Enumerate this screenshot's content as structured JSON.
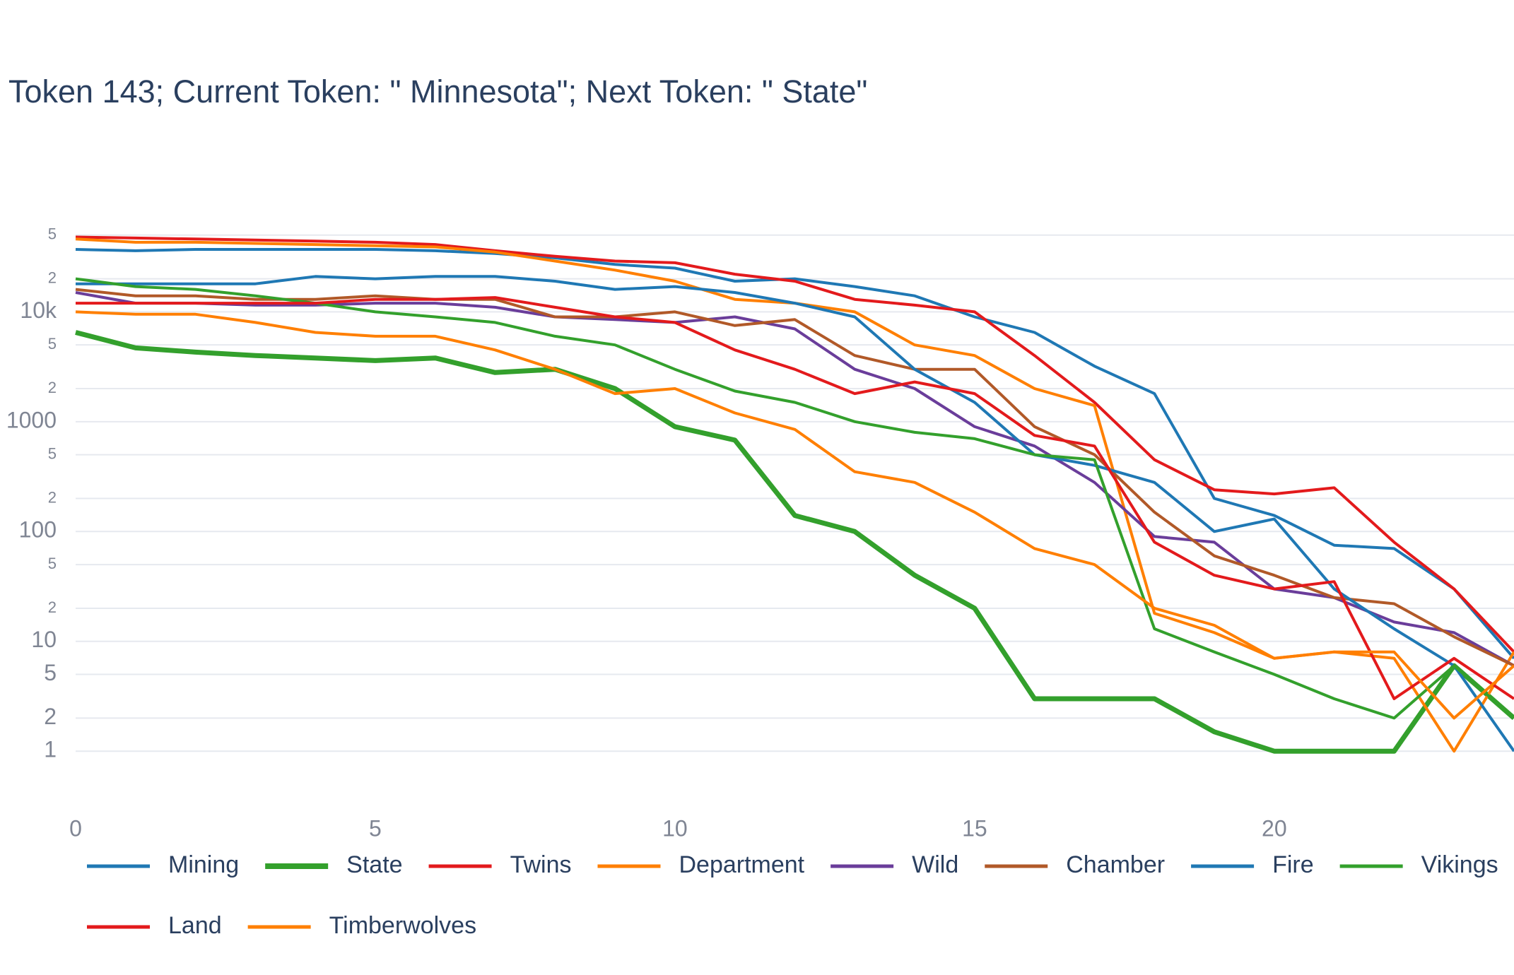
{
  "chart_data": {
    "type": "line",
    "title": "Token 143; Current Token: \" Minnesota\"; Next Token: \" State\"",
    "log_y": true,
    "grid": true,
    "legend": "bottom",
    "x": [
      0,
      1,
      2,
      3,
      4,
      5,
      6,
      7,
      8,
      9,
      10,
      11,
      12,
      13,
      14,
      15,
      16,
      17,
      18,
      19,
      20,
      21,
      22,
      23,
      24
    ],
    "xlim": [
      0,
      24
    ],
    "xticks": [
      0,
      5,
      10,
      15,
      20
    ],
    "ylim": [
      0.5,
      70000
    ],
    "yticks": [
      1,
      2,
      5,
      10,
      {
        "value": 20,
        "label": "2"
      },
      {
        "value": 50,
        "label": "5"
      },
      100,
      {
        "value": 200,
        "label": "2"
      },
      {
        "value": 500,
        "label": "5"
      },
      1000,
      {
        "value": 2000,
        "label": "2"
      },
      {
        "value": 5000,
        "label": "5"
      },
      {
        "value": 10000,
        "label": "10k"
      },
      {
        "value": 20000,
        "label": "2"
      },
      {
        "value": 50000,
        "label": "5"
      }
    ],
    "series": [
      {
        "name": "Mining",
        "color": "#1f78b4",
        "values": [
          37000,
          36000,
          37000,
          37000,
          37000,
          37000,
          36000,
          34000,
          31000,
          27000,
          25000,
          19000,
          20000,
          17000,
          14000,
          9000,
          6500,
          3200,
          1800,
          200,
          140,
          75,
          70,
          30,
          7
        ]
      },
      {
        "name": "State",
        "color": "#33a02c",
        "width": 7,
        "values": [
          6500,
          4700,
          4300,
          4000,
          3800,
          3600,
          3800,
          2800,
          3000,
          2000,
          900,
          680,
          140,
          100,
          40,
          20,
          3,
          3,
          3,
          1.5,
          1,
          1,
          1,
          6,
          2
        ]
      },
      {
        "name": "Twins",
        "color": "#e31a1c",
        "values": [
          48000,
          47000,
          46000,
          45000,
          44000,
          43000,
          41000,
          36000,
          32000,
          29000,
          28000,
          22000,
          19000,
          13000,
          11500,
          10000,
          4000,
          1500,
          450,
          240,
          220,
          250,
          80,
          30,
          8
        ]
      },
      {
        "name": "Department",
        "color": "#ff7f00",
        "values": [
          46000,
          43000,
          43000,
          42000,
          41000,
          40000,
          39000,
          35000,
          29000,
          24000,
          19000,
          13000,
          12000,
          10000,
          5000,
          4000,
          2000,
          1400,
          18,
          12,
          7,
          8,
          7,
          1,
          8
        ]
      },
      {
        "name": "Wild",
        "color": "#6a3d9a",
        "values": [
          15000,
          12000,
          12000,
          11500,
          11500,
          12000,
          12000,
          11000,
          9000,
          8500,
          8000,
          9000,
          7000,
          3000,
          2000,
          900,
          600,
          280,
          90,
          80,
          30,
          25,
          15,
          12,
          6
        ]
      },
      {
        "name": "Chamber",
        "color": "#b15928",
        "values": [
          16000,
          14000,
          14000,
          13000,
          13000,
          14000,
          13000,
          13000,
          9000,
          9000,
          10000,
          7500,
          8500,
          4000,
          3000,
          3000,
          900,
          500,
          150,
          60,
          40,
          25,
          22,
          11,
          6
        ]
      },
      {
        "name": "Fire",
        "color": "#1f78b4",
        "values": [
          18000,
          18000,
          18000,
          18000,
          21000,
          20000,
          21000,
          21000,
          19000,
          16000,
          17000,
          15000,
          12000,
          9000,
          3000,
          1500,
          500,
          400,
          280,
          100,
          130,
          30,
          13,
          6,
          1
        ]
      },
      {
        "name": "Vikings",
        "color": "#33a02c",
        "values": [
          20000,
          17000,
          16000,
          14000,
          12000,
          10000,
          9000,
          8000,
          6000,
          5000,
          3000,
          1900,
          1500,
          1000,
          800,
          700,
          500,
          450,
          13,
          8,
          5,
          3,
          2,
          6,
          2
        ]
      },
      {
        "name": "Land",
        "color": "#e31a1c",
        "values": [
          12000,
          12000,
          12000,
          12000,
          12000,
          13000,
          13000,
          13500,
          11000,
          9000,
          8000,
          4500,
          3000,
          1800,
          2300,
          1800,
          750,
          600,
          80,
          40,
          30,
          35,
          3,
          7,
          3
        ]
      },
      {
        "name": "Timberwolves",
        "color": "#ff7f00",
        "values": [
          10000,
          9500,
          9500,
          8000,
          6500,
          6000,
          6000,
          4500,
          3000,
          1800,
          2000,
          1200,
          850,
          350,
          280,
          150,
          70,
          50,
          20,
          14,
          7,
          8,
          8,
          2,
          6
        ]
      }
    ]
  }
}
